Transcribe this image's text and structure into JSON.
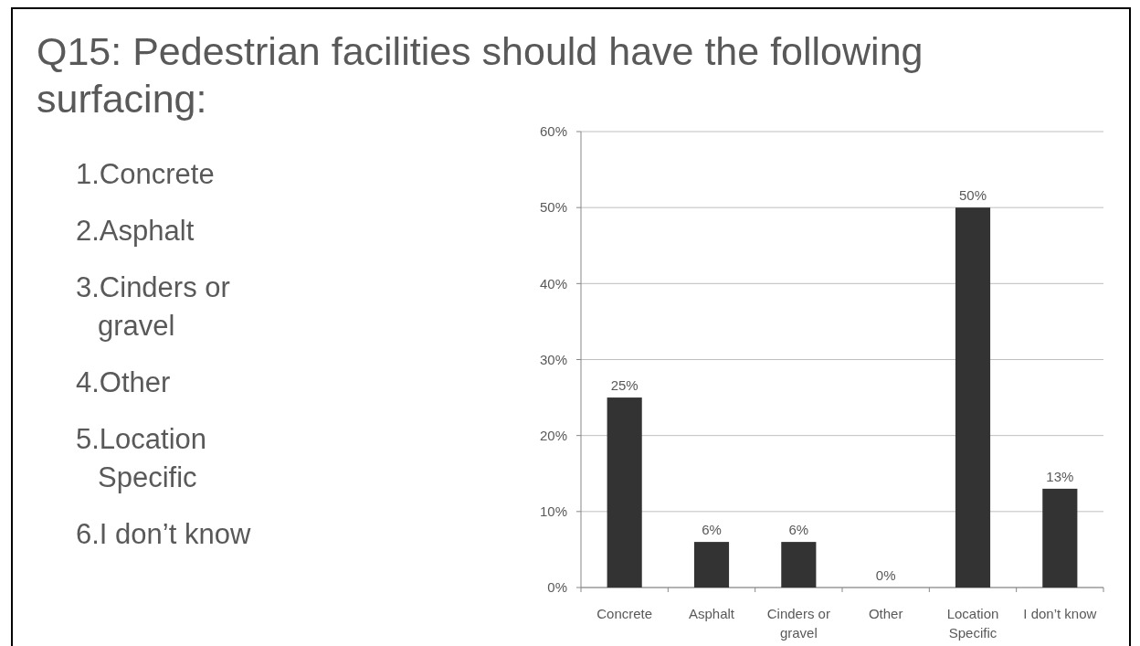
{
  "chart_data": {
    "type": "bar",
    "title": "Q15: Pedestrian facilities should have the following surfacing:",
    "annotations": [
      "1.Concrete",
      "2.Asphalt",
      "3.Cinders or gravel",
      "4.Other",
      "5.Location Specific",
      "6.I don’t know"
    ],
    "categories": [
      "Concrete",
      "Asphalt",
      "Cinders or gravel",
      "Other",
      "Location Specific",
      "I don’t know"
    ],
    "values": [
      25,
      6,
      6,
      0,
      50,
      13
    ],
    "value_labels": [
      "25%",
      "6%",
      "6%",
      "0%",
      "50%",
      "13%"
    ],
    "color": "#333333",
    "ylim": [
      0,
      60
    ],
    "yticks": [
      {
        "value": 0,
        "label": "0%"
      },
      {
        "value": 10,
        "label": "10%"
      },
      {
        "value": 20,
        "label": "20%"
      },
      {
        "value": 30,
        "label": "30%"
      },
      {
        "value": 40,
        "label": "40%"
      },
      {
        "value": 50,
        "label": "50%"
      },
      {
        "value": 60,
        "label": "60%"
      }
    ],
    "grid": "y"
  }
}
